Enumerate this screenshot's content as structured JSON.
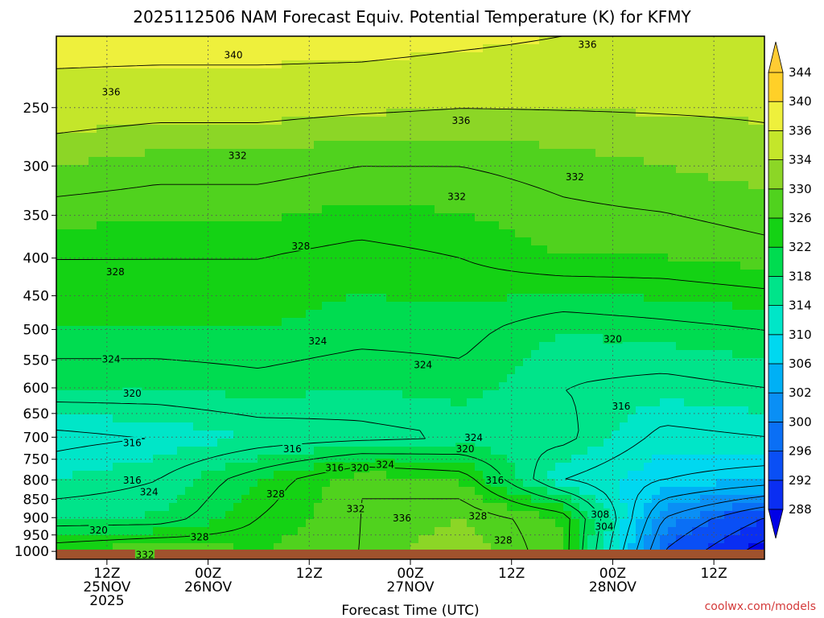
{
  "chart_data": {
    "type": "heatmap",
    "title": "2025112506 NAM Forecast Equiv. Potential Temperature (K) for KFMY",
    "xlabel": "Forecast Time (UTC)",
    "ylabel": "",
    "credit": "coolwx.com/models",
    "x_ticks": [
      {
        "hour": 6,
        "lines": [
          "12Z",
          "25NOV",
          "2025"
        ]
      },
      {
        "hour": 18,
        "lines": [
          "00Z",
          "26NOV"
        ]
      },
      {
        "hour": 30,
        "lines": [
          "12Z"
        ]
      },
      {
        "hour": 42,
        "lines": [
          "00Z",
          "27NOV"
        ]
      },
      {
        "hour": 54,
        "lines": [
          "12Z"
        ]
      },
      {
        "hour": 66,
        "lines": [
          "00Z",
          "28NOV"
        ]
      },
      {
        "hour": 78,
        "lines": [
          "12Z"
        ]
      }
    ],
    "xlim_hours": [
      0,
      84
    ],
    "y_ticks": [
      250,
      300,
      350,
      400,
      450,
      500,
      550,
      600,
      650,
      700,
      750,
      800,
      850,
      900,
      950,
      1000
    ],
    "ylim_hpa": [
      1025,
      200
    ],
    "y_scale": "log",
    "grid": "dotted",
    "colorbar": {
      "levels": [
        288,
        292,
        296,
        300,
        302,
        306,
        310,
        314,
        318,
        322,
        326,
        330,
        334,
        336,
        340,
        344
      ],
      "colors": [
        "#0008e6",
        "#0a2ef2",
        "#0a4ff5",
        "#0a6ff5",
        "#0a8ff5",
        "#00b0f5",
        "#00d8f0",
        "#00e6c8",
        "#00e48a",
        "#00dc50",
        "#14d214",
        "#50d21e",
        "#8cd626",
        "#c4e62a",
        "#eef03c",
        "#ffd028"
      ],
      "min_arrow_color": "#0000e6",
      "max_arrow_color": "#ffcc33"
    },
    "field_samples": {
      "hours": [
        0,
        12,
        24,
        36,
        48,
        60,
        72,
        84
      ],
      "pressures": [
        200,
        300,
        400,
        500,
        600,
        700,
        800,
        900,
        1000
      ],
      "theta_e": [
        [
          342,
          342,
          342,
          342,
          341,
          340,
          339,
          338
        ],
        [
          334,
          333,
          333,
          332,
          332,
          333,
          334,
          335
        ],
        [
          328,
          328,
          328,
          327,
          328,
          330,
          330,
          331
        ],
        [
          326,
          326,
          326,
          325,
          325,
          322,
          323,
          324
        ],
        [
          322,
          322,
          323,
          322,
          323,
          320,
          319,
          320
        ],
        [
          315,
          316,
          318,
          319,
          320,
          321,
          315,
          316
        ],
        [
          318,
          320,
          326,
          332,
          330,
          316,
          312,
          310
        ],
        [
          322,
          322,
          328,
          332,
          334,
          330,
          304,
          296
        ],
        [
          330,
          332,
          330,
          332,
          336,
          330,
          300,
          290
        ]
      ]
    },
    "contour_labels": [
      {
        "text": "340",
        "hour": 21,
        "p": 212
      },
      {
        "text": "336",
        "hour": 6.5,
        "p": 238
      },
      {
        "text": "336",
        "hour": 48,
        "p": 260
      },
      {
        "text": "336",
        "hour": 63,
        "p": 205
      },
      {
        "text": "332",
        "hour": 21.5,
        "p": 290
      },
      {
        "text": "332",
        "hour": 47.5,
        "p": 330
      },
      {
        "text": "332",
        "hour": 61.5,
        "p": 310
      },
      {
        "text": "328",
        "hour": 29,
        "p": 385
      },
      {
        "text": "328",
        "hour": 7,
        "p": 417
      },
      {
        "text": "324",
        "hour": 31,
        "p": 518
      },
      {
        "text": "324",
        "hour": 6.5,
        "p": 548
      },
      {
        "text": "324",
        "hour": 43.5,
        "p": 558
      },
      {
        "text": "320",
        "hour": 66,
        "p": 515
      },
      {
        "text": "320",
        "hour": 9,
        "p": 610
      },
      {
        "text": "316",
        "hour": 9,
        "p": 712
      },
      {
        "text": "316",
        "hour": 67,
        "p": 635
      },
      {
        "text": "324",
        "hour": 49.5,
        "p": 700
      },
      {
        "text": "320",
        "hour": 48.5,
        "p": 725
      },
      {
        "text": "316",
        "hour": 28,
        "p": 725
      },
      {
        "text": "316",
        "hour": 33,
        "p": 770
      },
      {
        "text": "320",
        "hour": 36,
        "p": 770
      },
      {
        "text": "324",
        "hour": 39,
        "p": 762
      },
      {
        "text": "316",
        "hour": 52,
        "p": 800
      },
      {
        "text": "316",
        "hour": 9,
        "p": 800
      },
      {
        "text": "324",
        "hour": 11,
        "p": 830
      },
      {
        "text": "328",
        "hour": 26,
        "p": 835
      },
      {
        "text": "332",
        "hour": 35.5,
        "p": 875
      },
      {
        "text": "336",
        "hour": 41,
        "p": 900
      },
      {
        "text": "328",
        "hour": 50,
        "p": 895
      },
      {
        "text": "320",
        "hour": 5,
        "p": 935
      },
      {
        "text": "328",
        "hour": 17,
        "p": 955
      },
      {
        "text": "328",
        "hour": 53,
        "p": 965
      },
      {
        "text": "308",
        "hour": 64.5,
        "p": 890
      },
      {
        "text": "304",
        "hour": 65,
        "p": 925
      },
      {
        "text": "332",
        "hour": 10.5,
        "p": 1010
      }
    ]
  }
}
